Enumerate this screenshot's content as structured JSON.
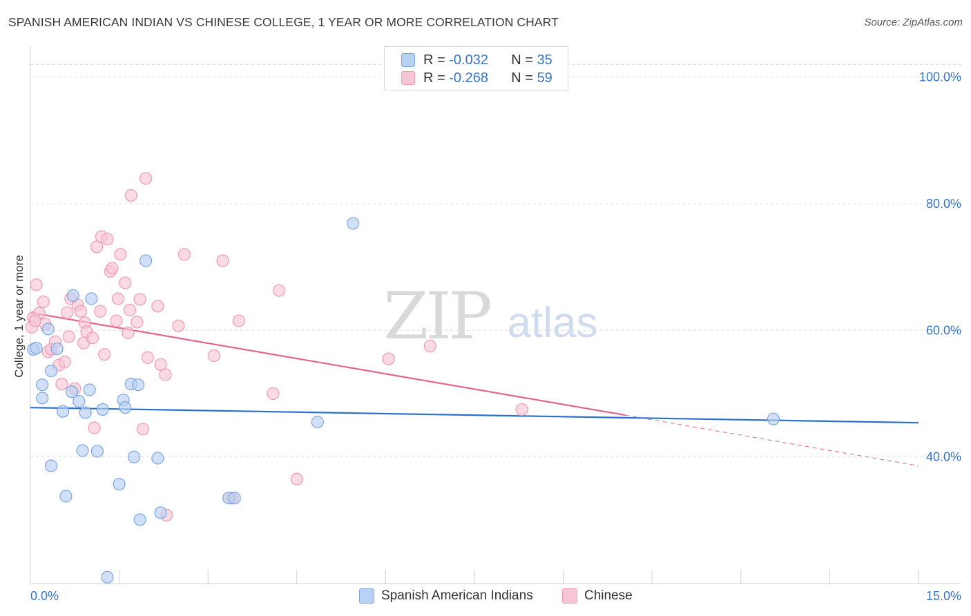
{
  "title": "SPANISH AMERICAN INDIAN VS CHINESE COLLEGE, 1 YEAR OR MORE CORRELATION CHART",
  "source": "Source: ZipAtlas.com",
  "watermark": {
    "zip": "ZIP",
    "atlas": "atlas"
  },
  "colors": {
    "blue_fill": "#b8d0f2",
    "blue_stroke": "#7aa6e0",
    "blue_line": "#2a6fcc",
    "pink_fill": "#f7c6d4",
    "pink_stroke": "#ee9ab2",
    "pink_line": "#e2648e",
    "axis_label": "#3575c7",
    "grid": "#dddddd"
  },
  "legend_top": [
    {
      "r_label": "R = ",
      "r_value": "-0.032",
      "n_label": "N = ",
      "n_value": "35",
      "color": "blue"
    },
    {
      "r_label": "R = ",
      "r_value": "-0.268",
      "n_label": "N = ",
      "n_value": "59",
      "color": "pink"
    }
  ],
  "legend_bottom": [
    {
      "label": "Spanish American Indians",
      "color": "blue"
    },
    {
      "label": "Chinese",
      "color": "pink"
    }
  ],
  "chart_data": {
    "type": "scatter",
    "xlabel": "",
    "ylabel": "College, 1 year or more",
    "xlim": [
      0,
      15
    ],
    "ylim": [
      20,
      104
    ],
    "x_tick_labels": [
      {
        "value": 0,
        "label": "0.0%"
      },
      {
        "value": 15,
        "label": "15.0%"
      }
    ],
    "y_tick_labels": [
      {
        "value": 100,
        "label": "100.0%"
      },
      {
        "value": 80,
        "label": "80.0%"
      },
      {
        "value": 60,
        "label": "60.0%"
      },
      {
        "value": 40,
        "label": "40.0%"
      }
    ],
    "series": [
      {
        "name": "Spanish American Indians",
        "color": "blue",
        "points": [
          [
            0.05,
            57.0
          ],
          [
            0.1,
            57.2
          ],
          [
            0.2,
            51.4
          ],
          [
            0.2,
            49.3
          ],
          [
            0.3,
            60.2
          ],
          [
            0.35,
            53.6
          ],
          [
            0.35,
            38.6
          ],
          [
            0.45,
            57.1
          ],
          [
            0.55,
            47.2
          ],
          [
            0.6,
            33.8
          ],
          [
            0.7,
            50.3
          ],
          [
            0.72,
            65.5
          ],
          [
            0.82,
            48.8
          ],
          [
            0.88,
            41.0
          ],
          [
            0.93,
            47.0
          ],
          [
            1.0,
            50.6
          ],
          [
            1.03,
            65.0
          ],
          [
            1.13,
            40.9
          ],
          [
            1.22,
            47.5
          ],
          [
            1.3,
            21.0
          ],
          [
            1.5,
            35.7
          ],
          [
            1.57,
            49.0
          ],
          [
            1.6,
            47.8
          ],
          [
            1.7,
            51.5
          ],
          [
            1.75,
            40.0
          ],
          [
            1.82,
            51.4
          ],
          [
            1.85,
            30.1
          ],
          [
            1.95,
            71.0
          ],
          [
            2.15,
            39.8
          ],
          [
            2.2,
            31.2
          ],
          [
            3.35,
            33.5
          ],
          [
            3.45,
            33.5
          ],
          [
            4.85,
            45.5
          ],
          [
            5.45,
            76.9
          ],
          [
            12.55,
            46.0
          ]
        ]
      },
      {
        "name": "Chinese",
        "color": "pink",
        "points": [
          [
            0.05,
            62.0
          ],
          [
            0.1,
            67.2
          ],
          [
            0.15,
            62.7
          ],
          [
            0.22,
            64.5
          ],
          [
            0.25,
            61.0
          ],
          [
            0.3,
            56.6
          ],
          [
            0.35,
            57.0
          ],
          [
            0.42,
            58.2
          ],
          [
            0.48,
            54.5
          ],
          [
            0.53,
            51.5
          ],
          [
            0.58,
            55.0
          ],
          [
            0.62,
            62.8
          ],
          [
            0.65,
            59.0
          ],
          [
            0.68,
            65.0
          ],
          [
            0.75,
            50.8
          ],
          [
            0.8,
            64.0
          ],
          [
            0.85,
            63.0
          ],
          [
            0.9,
            58.0
          ],
          [
            0.92,
            61.2
          ],
          [
            0.95,
            59.8
          ],
          [
            1.05,
            58.8
          ],
          [
            1.08,
            44.6
          ],
          [
            1.12,
            73.2
          ],
          [
            1.18,
            63.0
          ],
          [
            1.2,
            74.8
          ],
          [
            1.25,
            56.2
          ],
          [
            1.3,
            74.4
          ],
          [
            1.35,
            69.3
          ],
          [
            1.38,
            69.8
          ],
          [
            1.45,
            61.5
          ],
          [
            1.48,
            65.0
          ],
          [
            1.52,
            72.0
          ],
          [
            1.6,
            67.5
          ],
          [
            1.65,
            59.6
          ],
          [
            1.68,
            63.2
          ],
          [
            1.7,
            81.3
          ],
          [
            1.8,
            61.3
          ],
          [
            1.85,
            64.9
          ],
          [
            1.9,
            44.4
          ],
          [
            1.95,
            84.0
          ],
          [
            1.98,
            55.7
          ],
          [
            2.15,
            63.8
          ],
          [
            2.2,
            54.6
          ],
          [
            2.28,
            53.0
          ],
          [
            2.3,
            30.8
          ],
          [
            2.5,
            60.7
          ],
          [
            2.6,
            72.0
          ],
          [
            3.1,
            56.0
          ],
          [
            3.25,
            71.0
          ],
          [
            3.4,
            33.5
          ],
          [
            3.52,
            61.5
          ],
          [
            4.1,
            50.0
          ],
          [
            4.2,
            66.3
          ],
          [
            4.5,
            36.5
          ],
          [
            6.05,
            55.5
          ],
          [
            6.75,
            57.5
          ],
          [
            8.3,
            47.5
          ],
          [
            0.02,
            60.5
          ],
          [
            0.08,
            61.5
          ]
        ]
      }
    ],
    "trend_lines": [
      {
        "series": "Spanish American Indians",
        "x0": 0,
        "y0": 47.8,
        "x1": 15,
        "y1": 45.4,
        "style": "solid"
      },
      {
        "series": "Chinese",
        "x0": 0,
        "y0": 62.8,
        "x1": 10.05,
        "y1": 46.6,
        "style": "solid"
      },
      {
        "series": "Chinese",
        "x0": 10.05,
        "y0": 46.6,
        "x1": 15,
        "y1": 38.6,
        "style": "dashed"
      }
    ]
  }
}
